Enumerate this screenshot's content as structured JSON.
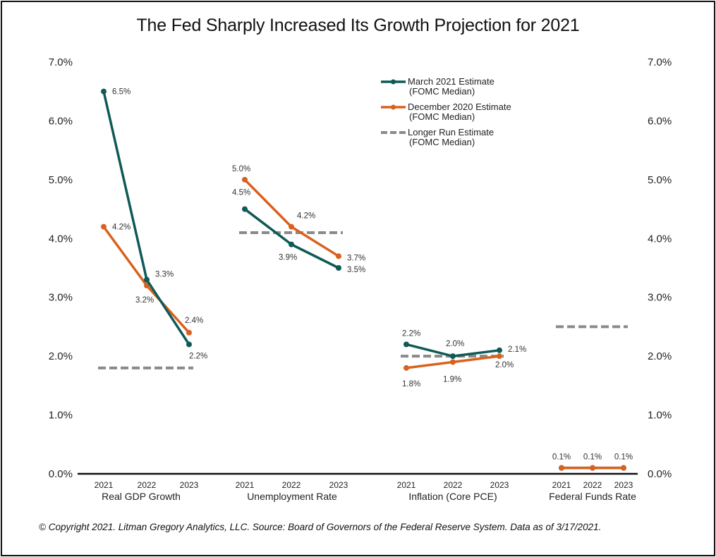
{
  "chart_data": {
    "type": "line",
    "title": "The Fed Sharply Increased Its Growth Projection for 2021",
    "xlabel": "",
    "ylabel": "",
    "ylim": [
      0,
      7
    ],
    "y_ticks": [
      "0.0%",
      "1.0%",
      "2.0%",
      "3.0%",
      "4.0%",
      "5.0%",
      "6.0%",
      "7.0%"
    ],
    "y_tick_values": [
      0,
      1,
      2,
      3,
      4,
      5,
      6,
      7
    ],
    "grid": false,
    "dual_y_axis": true,
    "legend_position": "top-center",
    "groups": [
      {
        "name": "Real GDP Growth",
        "years": [
          "2021",
          "2022",
          "2023"
        ],
        "series": [
          {
            "name": "March 2021 Estimate (FOMC Median)",
            "values": [
              6.5,
              3.3,
              2.2
            ],
            "labels": [
              "6.5%",
              "3.3%",
              "2.2%"
            ]
          },
          {
            "name": "December 2020 Estimate (FOMC Median)",
            "values": [
              4.2,
              3.2,
              2.4
            ],
            "labels": [
              "4.2%",
              "3.2%",
              "2.4%"
            ]
          }
        ],
        "longer_run": 1.8
      },
      {
        "name": "Unemployment Rate",
        "years": [
          "2021",
          "2022",
          "2023"
        ],
        "series": [
          {
            "name": "March 2021 Estimate (FOMC Median)",
            "values": [
              4.5,
              3.9,
              3.5
            ],
            "labels": [
              "4.5%",
              "3.9%",
              "3.5%"
            ]
          },
          {
            "name": "December 2020 Estimate (FOMC Median)",
            "values": [
              5.0,
              4.2,
              3.7
            ],
            "labels": [
              "5.0%",
              "4.2%",
              "3.7%"
            ]
          }
        ],
        "longer_run": 4.1
      },
      {
        "name": "Inflation (Core PCE)",
        "years": [
          "2021",
          "2022",
          "2023"
        ],
        "series": [
          {
            "name": "March 2021 Estimate (FOMC Median)",
            "values": [
              2.2,
              2.0,
              2.1
            ],
            "labels": [
              "2.2%",
              "2.0%",
              "2.1%"
            ]
          },
          {
            "name": "December 2020 Estimate (FOMC Median)",
            "values": [
              1.8,
              1.9,
              2.0
            ],
            "labels": [
              "1.8%",
              "1.9%",
              "2.0%"
            ]
          }
        ],
        "longer_run": 2.0
      },
      {
        "name": "Federal Funds Rate",
        "years": [
          "2021",
          "2022",
          "2023"
        ],
        "series": [
          {
            "name": "March 2021 Estimate (FOMC Median)",
            "values": [
              0.1,
              0.1,
              0.1
            ],
            "labels": [
              "",
              "",
              ""
            ]
          },
          {
            "name": "December 2020 Estimate (FOMC Median)",
            "values": [
              0.1,
              0.1,
              0.1
            ],
            "labels": [
              "0.1%",
              "0.1%",
              "0.1%"
            ]
          }
        ],
        "longer_run": 2.5
      }
    ],
    "legend": [
      {
        "line1": "March 2021 Estimate",
        "line2": "(FOMC Median)",
        "color": "#0f5a56",
        "style": "solid-marker"
      },
      {
        "line1": "December 2020 Estimate",
        "line2": "(FOMC Median)",
        "color": "#d9611f",
        "style": "solid-marker"
      },
      {
        "line1": "Longer Run Estimate",
        "line2": "(FOMC Median)",
        "color": "#8a8a8a",
        "style": "dashed"
      }
    ]
  },
  "colors": {
    "march": "#0f5a56",
    "december": "#d9611f",
    "longer_run": "#8a8a8a"
  },
  "footer": {
    "text": "© Copyright 2021. Litman Gregory Analytics, LLC. Source: Board of Governors of the Federal Reserve System. Data as of 3/17/2021."
  }
}
